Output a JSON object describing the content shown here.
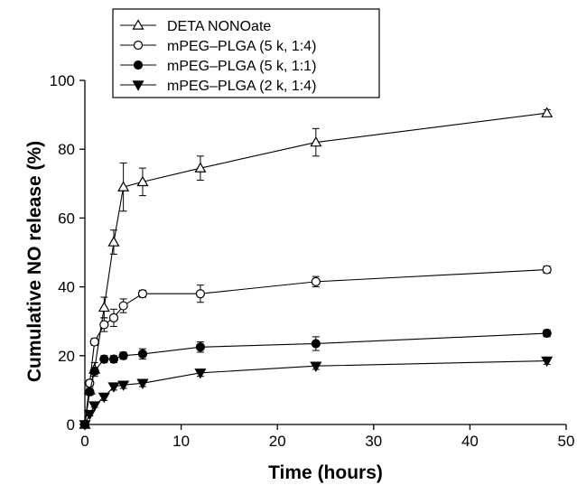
{
  "chart_data": {
    "type": "line",
    "xlabel": "Time (hours)",
    "ylabel": "Cumulative NO release (%)",
    "xlim": [
      0,
      50
    ],
    "ylim": [
      0,
      100
    ],
    "xticks": [
      "0",
      "10",
      "20",
      "30",
      "40",
      "50"
    ],
    "yticks": [
      "0",
      "20",
      "40",
      "60",
      "80",
      "100"
    ],
    "grid": false,
    "legend_position": "top-left",
    "x": [
      0,
      0.5,
      1,
      2,
      3,
      4,
      6,
      12,
      24,
      48
    ],
    "series": [
      {
        "name": "DETA NONOate",
        "marker": "open-triangle-up",
        "values": [
          0,
          10,
          16,
          34,
          53,
          69,
          70.5,
          74.5,
          82,
          90.5
        ],
        "errors": [
          0,
          1.5,
          2,
          3,
          3.5,
          7,
          4,
          3.5,
          4,
          1
        ]
      },
      {
        "name": "mPEG–PLGA (5 k, 1:4)",
        "marker": "open-circle",
        "values": [
          0,
          12,
          24,
          29,
          31,
          34.5,
          38,
          38,
          41.5,
          45
        ],
        "errors": [
          0,
          1,
          1,
          2,
          2.5,
          2,
          1,
          2.5,
          1.5,
          1
        ]
      },
      {
        "name": "mPEG–PLGA (5 k, 1:1)",
        "marker": "filled-circle",
        "values": [
          0,
          9.5,
          15.5,
          19,
          19,
          20,
          20.5,
          22.5,
          23.5,
          26.5
        ],
        "errors": [
          0,
          1,
          1,
          1,
          1,
          1,
          1.5,
          1.5,
          2,
          1
        ]
      },
      {
        "name": "mPEG–PLGA (2 k, 1:4)",
        "marker": "filled-triangle-down",
        "values": [
          0,
          3,
          5.5,
          8,
          11,
          11.5,
          12,
          15,
          17,
          18.5
        ],
        "errors": [
          0,
          0.5,
          0.5,
          1,
          1,
          1,
          1,
          1,
          1,
          1
        ]
      }
    ]
  }
}
